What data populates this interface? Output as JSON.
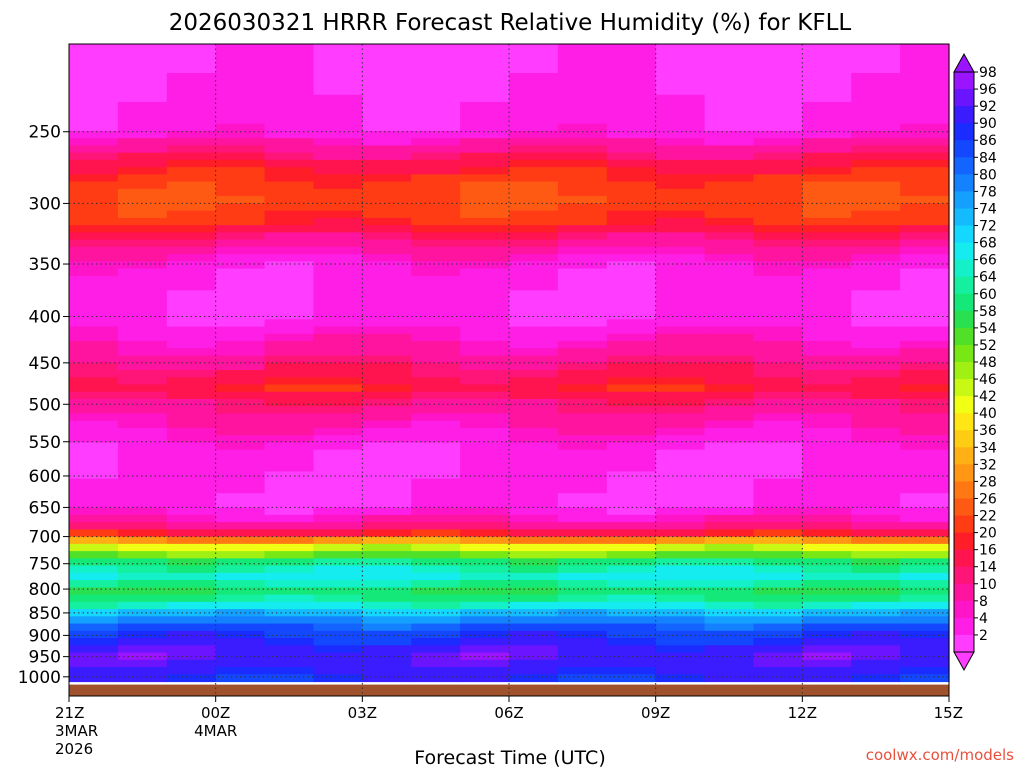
{
  "chart_data": {
    "type": "heatmap",
    "title": "2026030321 HRRR Forecast Relative Humidity (%) for KFLL",
    "xlabel": "Forecast Time (UTC)",
    "ylabel": "",
    "credit": "coolwx.com/models",
    "y_scale": "log-pressure",
    "ylim": [
      200,
      1050
    ],
    "xlim": [
      0,
      18
    ],
    "grid": true,
    "x_ticks": [
      {
        "x": 0,
        "label": "21Z",
        "sub1": "3MAR",
        "sub2": "2026"
      },
      {
        "x": 3,
        "label": "00Z",
        "sub1": "4MAR",
        "sub2": ""
      },
      {
        "x": 6,
        "label": "03Z",
        "sub1": "",
        "sub2": ""
      },
      {
        "x": 9,
        "label": "06Z",
        "sub1": "",
        "sub2": ""
      },
      {
        "x": 12,
        "label": "09Z",
        "sub1": "",
        "sub2": ""
      },
      {
        "x": 15,
        "label": "12Z",
        "sub1": "",
        "sub2": ""
      },
      {
        "x": 18,
        "label": "15Z",
        "sub1": "",
        "sub2": ""
      }
    ],
    "y_ticks": [
      250,
      300,
      350,
      400,
      450,
      500,
      550,
      600,
      650,
      700,
      750,
      800,
      850,
      900,
      950,
      1000
    ],
    "colorbar": {
      "labels": [
        98,
        96,
        92,
        90,
        86,
        84,
        80,
        78,
        74,
        72,
        68,
        66,
        64,
        60,
        58,
        54,
        52,
        48,
        46,
        42,
        40,
        36,
        34,
        32,
        28,
        26,
        22,
        20,
        16,
        14,
        10,
        8,
        4,
        2
      ],
      "colors": [
        "#9a14ff",
        "#6a14ff",
        "#3a1cff",
        "#1a2cff",
        "#1448ff",
        "#1464ff",
        "#1482ff",
        "#14a0ff",
        "#14bcff",
        "#14d8ff",
        "#14ecf0",
        "#14f0c8",
        "#14f0a0",
        "#14e878",
        "#28e050",
        "#50e028",
        "#78e814",
        "#a0f014",
        "#c8f814",
        "#f0ff14",
        "#ffe614",
        "#ffcc14",
        "#ffb014",
        "#ff9614",
        "#ff7814",
        "#ff5a14",
        "#ff3c14",
        "#ff1e28",
        "#ff1450",
        "#ff1478",
        "#ff14a0",
        "#ff14c8",
        "#ff1ee6",
        "#ff3cff"
      ]
    },
    "x": [
      0,
      1,
      2,
      3,
      4,
      5,
      6,
      7,
      8,
      9,
      10,
      11,
      12,
      13,
      14,
      15,
      16,
      17,
      18
    ],
    "pressure_levels": [
      200,
      225,
      250,
      270,
      285,
      300,
      315,
      330,
      350,
      400,
      450,
      480,
      500,
      550,
      600,
      650,
      690,
      720,
      750,
      780,
      800,
      830,
      850,
      880,
      900,
      930,
      950,
      980,
      1000,
      1020
    ],
    "rh_profile": [
      2,
      4,
      6,
      18,
      24,
      26,
      22,
      14,
      6,
      4,
      14,
      20,
      14,
      6,
      4,
      4,
      16,
      46,
      64,
      70,
      60,
      66,
      76,
      86,
      90,
      94,
      96,
      94,
      92,
      90
    ],
    "ground": {
      "pressure_top": 1020,
      "color": "#a0522d"
    }
  }
}
